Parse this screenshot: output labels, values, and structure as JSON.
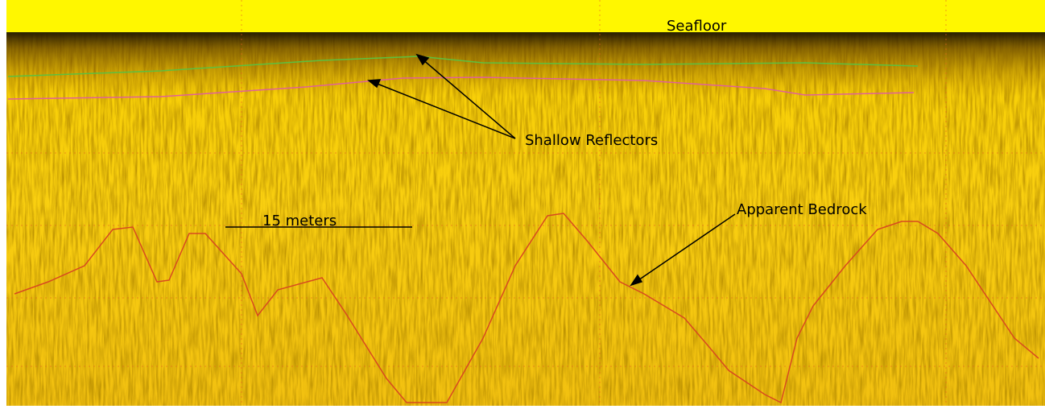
{
  "annotations": {
    "seafloor": "Seafloor",
    "shallow_reflectors": "Shallow Reflectors",
    "bedrock": "Apparent Bedrock",
    "scale": "15 meters"
  }
}
